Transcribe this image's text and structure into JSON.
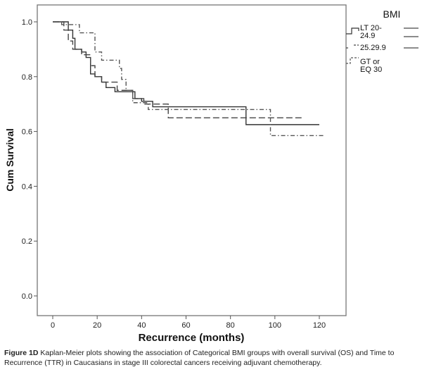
{
  "chart_data": {
    "type": "line",
    "step": true,
    "xlabel": "Recurrence (months)",
    "ylabel": "Cum Survival",
    "xlim": [
      -7,
      132
    ],
    "ylim": [
      -0.07,
      1.06
    ],
    "xticks": [
      0,
      20,
      40,
      60,
      80,
      100,
      120
    ],
    "yticks": [
      0.0,
      0.2,
      0.4,
      0.6,
      0.8,
      1.0
    ],
    "ytick_labels": [
      "0.0",
      "0.2",
      "0.4",
      "0.6",
      "0.8",
      "1.0"
    ],
    "grid": false,
    "legend": {
      "title": "BMI",
      "placement": "right"
    },
    "series": [
      {
        "name": "LT 20-24.9",
        "color": "#333333",
        "dash": "solid",
        "x": [
          0,
          7,
          9,
          10,
          13,
          15,
          17,
          19,
          22,
          24,
          28,
          37,
          40,
          45,
          87,
          120
        ],
        "y": [
          1.0,
          0.97,
          0.94,
          0.9,
          0.89,
          0.87,
          0.81,
          0.8,
          0.78,
          0.76,
          0.745,
          0.72,
          0.71,
          0.69,
          0.625,
          0.625
        ]
      },
      {
        "name": "25.29.9",
        "color": "#444444",
        "dash": "dashed",
        "x": [
          0,
          5,
          7,
          9,
          13,
          17,
          19,
          22,
          29,
          36,
          41,
          52,
          112
        ],
        "y": [
          1.0,
          0.97,
          0.93,
          0.9,
          0.88,
          0.84,
          0.8,
          0.78,
          0.75,
          0.72,
          0.7,
          0.65,
          0.65
        ]
      },
      {
        "name": "GT or EQ 30",
        "color": "#555555",
        "dash": "dashdot",
        "x": [
          0,
          4,
          12,
          19,
          22,
          30,
          31,
          33,
          36,
          43,
          98,
          122
        ],
        "y": [
          1.0,
          0.99,
          0.96,
          0.89,
          0.86,
          0.83,
          0.79,
          0.75,
          0.705,
          0.68,
          0.585,
          0.585
        ]
      }
    ]
  },
  "caption": {
    "label": "Figure 1D",
    "text": " Kaplan-Meier plots showing the association of Categorical BMI groups with overall survival (OS) and Time to Recurrence (TTR) in Caucasians in stage III colorectal cancers receiving adjuvant chemotherapy."
  }
}
